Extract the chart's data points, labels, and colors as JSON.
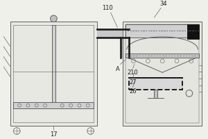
{
  "bg_color": "#f0f0eb",
  "line_color": "#606060",
  "dark_color": "#1a1a1a",
  "lw": 0.7,
  "lw_thick": 1.4,
  "figsize": [
    3.0,
    2.0
  ],
  "dpi": 100,
  "label_fs": 6.0
}
